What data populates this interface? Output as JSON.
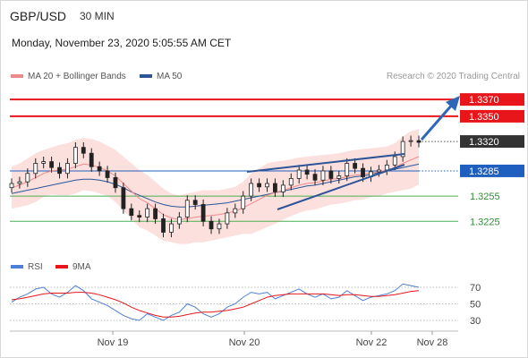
{
  "header": {
    "symbol": "GBP/USD",
    "period": "30 MIN",
    "datetime": "Monday, November 23, 2020 5:05:55 AM CET"
  },
  "legend": {
    "ma20_bb": "MA 20 + Bollinger Bands",
    "ma50": "MA 50",
    "rsi": "RSI",
    "ma9": "9MA"
  },
  "credit": "Research © 2020 Trading Central",
  "colors": {
    "resistance": "#e8161b",
    "support": "#4caf50",
    "pivot": "#1f5fbf",
    "last": "#333333",
    "ma20": "#f08a8a",
    "ma50": "#2d5597",
    "bands": "#fbd5d3",
    "rsi": "#4d7fd6",
    "rsi_ma": "#e8161b",
    "arrow": "#2e66b8"
  },
  "chart_data": [
    {
      "type": "line",
      "name": "GBP/USD 30 MIN candlesticks",
      "x_ticks": [
        "Nov 19",
        "Nov 20",
        "Nov 22",
        "Nov 28"
      ],
      "y_range": [
        1.3188,
        1.3384
      ],
      "levels": [
        {
          "value": 1.337,
          "label": "1.3370",
          "kind": "resistance"
        },
        {
          "value": 1.335,
          "label": "1.3350",
          "kind": "resistance"
        },
        {
          "value": 1.332,
          "label": "1.3320",
          "kind": "last"
        },
        {
          "value": 1.3285,
          "label": "1.3285",
          "kind": "pivot"
        },
        {
          "value": 1.3255,
          "label": "1.3255",
          "kind": "support"
        },
        {
          "value": 1.3225,
          "label": "1.3225",
          "kind": "support"
        }
      ],
      "close_series": [
        1.327,
        1.3272,
        1.3282,
        1.3294,
        1.3296,
        1.3289,
        1.3282,
        1.3294,
        1.3313,
        1.3306,
        1.329,
        1.3285,
        1.3277,
        1.3265,
        1.324,
        1.3232,
        1.323,
        1.324,
        1.3228,
        1.3212,
        1.3222,
        1.323,
        1.325,
        1.3245,
        1.3225,
        1.3216,
        1.3222,
        1.3235,
        1.324,
        1.3255,
        1.327,
        1.3266,
        1.327,
        1.326,
        1.3268,
        1.3276,
        1.3286,
        1.3281,
        1.3274,
        1.3285,
        1.3276,
        1.3279,
        1.3294,
        1.3288,
        1.3278,
        1.3284,
        1.3286,
        1.3292,
        1.3302,
        1.332,
        1.3321,
        1.3319
      ],
      "ma20": [
        1.3265,
        1.3268,
        1.3272,
        1.3277,
        1.3282,
        1.3285,
        1.3286,
        1.3287,
        1.329,
        1.3293,
        1.3292,
        1.3289,
        1.3285,
        1.3279,
        1.327,
        1.3261,
        1.3252,
        1.3247,
        1.324,
        1.3233,
        1.3229,
        1.3227,
        1.3228,
        1.323,
        1.3231,
        1.3232,
        1.3233,
        1.3235,
        1.3237,
        1.3241,
        1.3246,
        1.3251,
        1.3256,
        1.3259,
        1.3262,
        1.3265,
        1.3268,
        1.327,
        1.3271,
        1.3273,
        1.3275,
        1.3276,
        1.3278,
        1.328,
        1.3281,
        1.3283,
        1.3284,
        1.3286,
        1.3289,
        1.3294,
        1.3298,
        1.3302
      ],
      "ma50": [
        1.3258,
        1.326,
        1.3262,
        1.3264,
        1.3266,
        1.3268,
        1.327,
        1.3272,
        1.3274,
        1.3275,
        1.3275,
        1.3274,
        1.3272,
        1.3269,
        1.3265,
        1.326,
        1.3256,
        1.3252,
        1.3248,
        1.3245,
        1.3243,
        1.3242,
        1.3242,
        1.3243,
        1.3244,
        1.3245,
        1.3246,
        1.3247,
        1.3249,
        1.3251,
        1.3253,
        1.3255,
        1.3257,
        1.3259,
        1.3261,
        1.3263,
        1.3265,
        1.3267,
        1.3268,
        1.327,
        1.3272,
        1.3274,
        1.3276,
        1.3278,
        1.3279,
        1.3281,
        1.3283,
        1.3285,
        1.3287,
        1.3289,
        1.3291,
        1.3293
      ],
      "bb_upper": [
        1.329,
        1.3294,
        1.33,
        1.3306,
        1.331,
        1.3313,
        1.3316,
        1.3318,
        1.3322,
        1.3324,
        1.3323,
        1.332,
        1.3315,
        1.331,
        1.3302,
        1.3294,
        1.3286,
        1.328,
        1.3272,
        1.3264,
        1.3258,
        1.3256,
        1.3258,
        1.326,
        1.3262,
        1.3262,
        1.3262,
        1.3264,
        1.3266,
        1.3272,
        1.3282,
        1.3288,
        1.3294,
        1.3296,
        1.3297,
        1.3299,
        1.3301,
        1.3302,
        1.3303,
        1.3304,
        1.3305,
        1.3306,
        1.3308,
        1.331,
        1.3311,
        1.3312,
        1.3313,
        1.3314,
        1.3318,
        1.3326,
        1.3332,
        1.3335
      ],
      "bb_lower": [
        1.324,
        1.3242,
        1.3244,
        1.3248,
        1.3254,
        1.3257,
        1.3256,
        1.3256,
        1.3258,
        1.3262,
        1.3261,
        1.3258,
        1.3255,
        1.3248,
        1.3238,
        1.3228,
        1.3218,
        1.3214,
        1.3208,
        1.3202,
        1.32,
        1.3198,
        1.3198,
        1.32,
        1.32,
        1.3202,
        1.3204,
        1.3206,
        1.3208,
        1.321,
        1.321,
        1.3214,
        1.3218,
        1.3222,
        1.3227,
        1.3231,
        1.3235,
        1.3238,
        1.3239,
        1.3242,
        1.3245,
        1.3246,
        1.3248,
        1.325,
        1.3251,
        1.3254,
        1.3255,
        1.3258,
        1.326,
        1.3262,
        1.3264,
        1.3269
      ]
    },
    {
      "type": "line",
      "name": "RSI",
      "y_ticks": [
        70,
        50,
        30
      ],
      "series": [
        {
          "name": "RSI",
          "values": [
            52,
            58,
            62,
            68,
            70,
            62,
            58,
            64,
            72,
            66,
            56,
            52,
            48,
            42,
            36,
            32,
            30,
            38,
            34,
            30,
            36,
            40,
            50,
            46,
            38,
            34,
            38,
            46,
            50,
            58,
            64,
            62,
            64,
            56,
            60,
            64,
            68,
            62,
            58,
            62,
            56,
            58,
            66,
            60,
            54,
            58,
            60,
            62,
            66,
            74,
            72,
            70
          ]
        },
        {
          "name": "9MA",
          "values": [
            55,
            56,
            58,
            60,
            62,
            63,
            63,
            63,
            64,
            64,
            63,
            61,
            58,
            55,
            51,
            46,
            42,
            39,
            36,
            34,
            34,
            35,
            37,
            39,
            40,
            40,
            41,
            42,
            44,
            46,
            50,
            54,
            58,
            60,
            61,
            62,
            62,
            62,
            62,
            62,
            61,
            60,
            61,
            61,
            60,
            59,
            59,
            60,
            61,
            63,
            65,
            66
          ]
        }
      ]
    }
  ]
}
